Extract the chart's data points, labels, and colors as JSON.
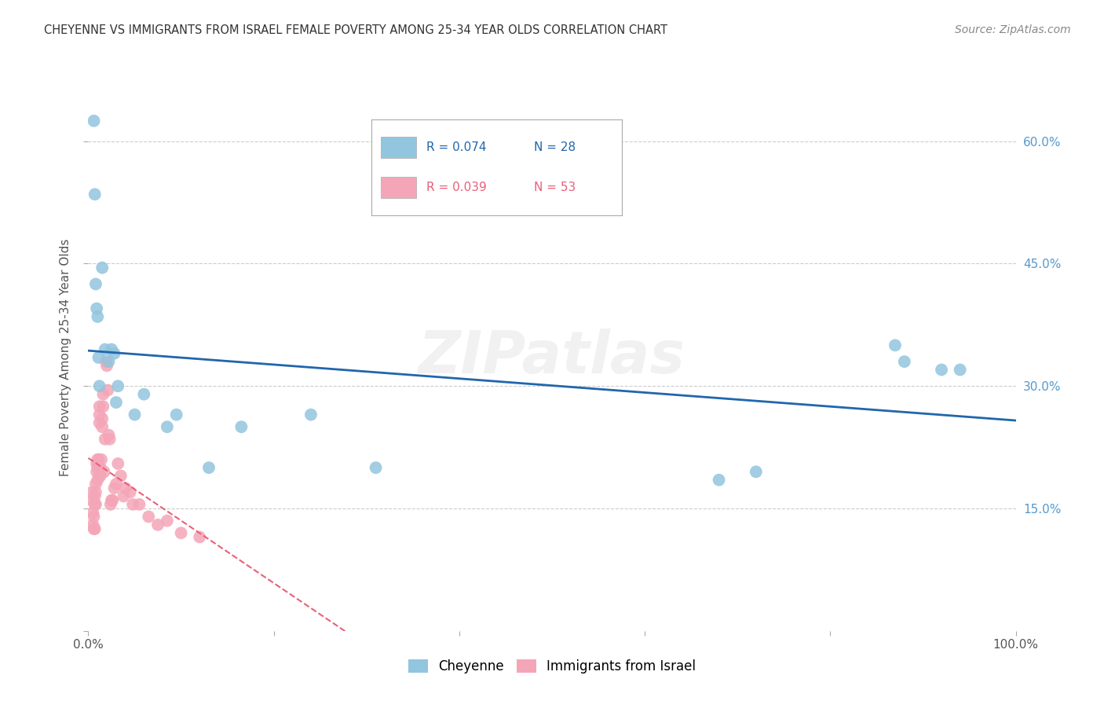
{
  "title": "CHEYENNE VS IMMIGRANTS FROM ISRAEL FEMALE POVERTY AMONG 25-34 YEAR OLDS CORRELATION CHART",
  "source": "Source: ZipAtlas.com",
  "ylabel": "Female Poverty Among 25-34 Year Olds",
  "xlim": [
    0,
    1.0
  ],
  "ylim": [
    0,
    0.67
  ],
  "yticks": [
    0.0,
    0.15,
    0.3,
    0.45,
    0.6
  ],
  "right_yticklabels": [
    "",
    "15.0%",
    "30.0%",
    "45.0%",
    "60.0%"
  ],
  "legend_r1": "R = 0.074",
  "legend_n1": "N = 28",
  "legend_r2": "R = 0.039",
  "legend_n2": "N = 53",
  "cheyenne_color": "#92C5DE",
  "israel_color": "#F4A6B8",
  "cheyenne_trend_color": "#2166AC",
  "israel_trend_color": "#E8607A",
  "watermark": "ZIPatlas",
  "background_color": "#FFFFFF",
  "grid_color": "#CCCCCC",
  "cheyenne_x": [
    0.006,
    0.007,
    0.008,
    0.009,
    0.01,
    0.011,
    0.012,
    0.015,
    0.018,
    0.022,
    0.025,
    0.028,
    0.03,
    0.032,
    0.05,
    0.06,
    0.085,
    0.095,
    0.13,
    0.165,
    0.24,
    0.31,
    0.68,
    0.72,
    0.87,
    0.88,
    0.92,
    0.94
  ],
  "cheyenne_y": [
    0.625,
    0.535,
    0.425,
    0.395,
    0.385,
    0.335,
    0.3,
    0.445,
    0.345,
    0.33,
    0.345,
    0.34,
    0.28,
    0.3,
    0.265,
    0.29,
    0.25,
    0.265,
    0.2,
    0.25,
    0.265,
    0.2,
    0.185,
    0.195,
    0.35,
    0.33,
    0.32,
    0.32
  ],
  "israel_x": [
    0.004,
    0.004,
    0.005,
    0.005,
    0.006,
    0.006,
    0.007,
    0.007,
    0.007,
    0.008,
    0.008,
    0.008,
    0.009,
    0.009,
    0.01,
    0.01,
    0.01,
    0.011,
    0.011,
    0.012,
    0.012,
    0.012,
    0.013,
    0.013,
    0.014,
    0.015,
    0.015,
    0.016,
    0.016,
    0.017,
    0.018,
    0.019,
    0.02,
    0.021,
    0.022,
    0.023,
    0.024,
    0.025,
    0.026,
    0.028,
    0.03,
    0.032,
    0.035,
    0.038,
    0.04,
    0.045,
    0.048,
    0.055,
    0.065,
    0.075,
    0.085,
    0.1,
    0.12
  ],
  "israel_y": [
    0.17,
    0.16,
    0.145,
    0.13,
    0.14,
    0.125,
    0.165,
    0.155,
    0.125,
    0.18,
    0.17,
    0.155,
    0.205,
    0.195,
    0.21,
    0.2,
    0.185,
    0.21,
    0.2,
    0.275,
    0.265,
    0.255,
    0.2,
    0.19,
    0.21,
    0.26,
    0.25,
    0.29,
    0.275,
    0.195,
    0.235,
    0.33,
    0.325,
    0.295,
    0.24,
    0.235,
    0.155,
    0.16,
    0.16,
    0.175,
    0.18,
    0.205,
    0.19,
    0.165,
    0.175,
    0.17,
    0.155,
    0.155,
    0.14,
    0.13,
    0.135,
    0.12,
    0.115
  ]
}
